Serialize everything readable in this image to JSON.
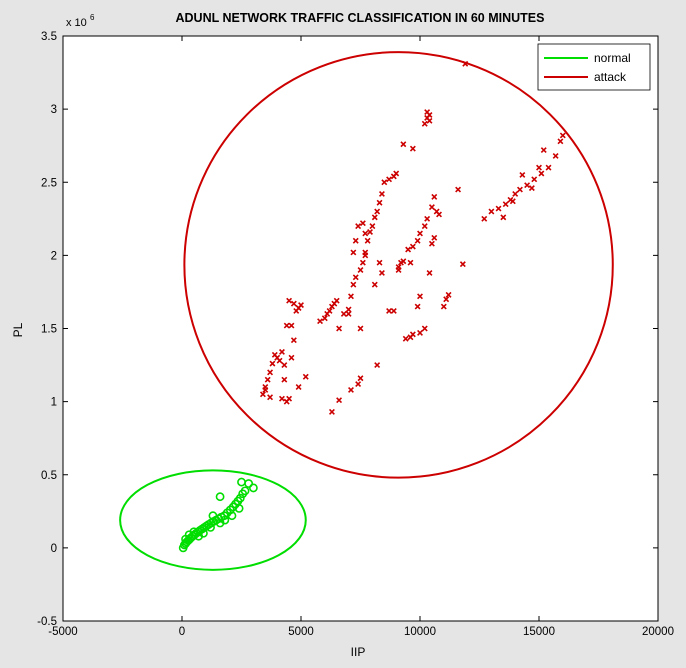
{
  "chart_data": {
    "type": "scatter",
    "title": "ADUNL NETWORK TRAFFIC CLASSIFICATION IN 60 MINUTES",
    "xlabel": "IIP",
    "ylabel": "PL",
    "y_exponent_label": "x 10",
    "y_exponent": "6",
    "xlim": [
      -5000,
      20000
    ],
    "ylim": [
      -0.5,
      3.5
    ],
    "x_ticks": [
      -5000,
      0,
      5000,
      10000,
      15000,
      20000
    ],
    "x_tick_labels": [
      "-5000",
      "0",
      "5000",
      "10000",
      "15000",
      "20000"
    ],
    "y_ticks": [
      -0.5,
      0,
      0.5,
      1,
      1.5,
      2,
      2.5,
      3,
      3.5
    ],
    "y_tick_labels": [
      "-0.5",
      "0",
      "0.5",
      "1",
      "1.5",
      "2",
      "2.5",
      "3",
      "3.5"
    ],
    "grid": false,
    "legend_position": "top-right",
    "series": [
      {
        "name": "normal",
        "color": "#00dd00",
        "marker": "circle",
        "boundary": {
          "cx": 1300,
          "cy": 0.19,
          "rx": 3900,
          "ry": 0.34
        },
        "points": [
          [
            50,
            0.0
          ],
          [
            100,
            0.02
          ],
          [
            150,
            0.03
          ],
          [
            200,
            0.04
          ],
          [
            260,
            0.05
          ],
          [
            320,
            0.06
          ],
          [
            380,
            0.07
          ],
          [
            450,
            0.08
          ],
          [
            520,
            0.09
          ],
          [
            600,
            0.1
          ],
          [
            680,
            0.11
          ],
          [
            760,
            0.12
          ],
          [
            850,
            0.13
          ],
          [
            940,
            0.14
          ],
          [
            1030,
            0.15
          ],
          [
            1120,
            0.16
          ],
          [
            1220,
            0.17
          ],
          [
            1320,
            0.18
          ],
          [
            1430,
            0.19
          ],
          [
            1540,
            0.2
          ],
          [
            1650,
            0.21
          ],
          [
            1780,
            0.22
          ],
          [
            1900,
            0.24
          ],
          [
            2030,
            0.26
          ],
          [
            2150,
            0.28
          ],
          [
            2250,
            0.3
          ],
          [
            2350,
            0.32
          ],
          [
            2450,
            0.34
          ],
          [
            2550,
            0.37
          ],
          [
            2650,
            0.39
          ],
          [
            500,
            0.11
          ],
          [
            300,
            0.09
          ],
          [
            900,
            0.1
          ],
          [
            1200,
            0.14
          ],
          [
            1600,
            0.17
          ],
          [
            2100,
            0.22
          ],
          [
            1300,
            0.22
          ],
          [
            1600,
            0.35
          ],
          [
            2500,
            0.45
          ],
          [
            3000,
            0.41
          ],
          [
            2800,
            0.44
          ],
          [
            2400,
            0.27
          ],
          [
            150,
            0.06
          ],
          [
            700,
            0.08
          ],
          [
            1800,
            0.19
          ]
        ]
      },
      {
        "name": "attack",
        "color": "#cc0000",
        "marker": "x",
        "boundary": {
          "cx": 9100,
          "cy": 1.935,
          "rx": 9000,
          "ry": 1.455
        },
        "points": [
          [
            3400,
            1.05
          ],
          [
            3500,
            1.1
          ],
          [
            3600,
            1.15
          ],
          [
            3700,
            1.2
          ],
          [
            3800,
            1.26
          ],
          [
            3900,
            1.32
          ],
          [
            4000,
            1.3
          ],
          [
            4100,
            1.28
          ],
          [
            4200,
            1.34
          ],
          [
            4300,
            1.25
          ],
          [
            3500,
            1.08
          ],
          [
            3700,
            1.03
          ],
          [
            4200,
            1.02
          ],
          [
            4400,
            1.0
          ],
          [
            4500,
            1.02
          ],
          [
            4300,
            1.15
          ],
          [
            4600,
            1.3
          ],
          [
            4900,
            1.1
          ],
          [
            5200,
            1.17
          ],
          [
            4700,
            1.42
          ],
          [
            4400,
            1.52
          ],
          [
            4500,
            1.69
          ],
          [
            4700,
            1.67
          ],
          [
            4900,
            1.64
          ],
          [
            5000,
            1.66
          ],
          [
            4800,
            1.62
          ],
          [
            4600,
            1.52
          ],
          [
            5800,
            1.55
          ],
          [
            6000,
            1.57
          ],
          [
            6100,
            1.6
          ],
          [
            6200,
            1.62
          ],
          [
            6300,
            1.65
          ],
          [
            6400,
            1.67
          ],
          [
            6500,
            1.69
          ],
          [
            6600,
            1.5
          ],
          [
            6800,
            1.6
          ],
          [
            7000,
            1.63
          ],
          [
            7100,
            1.72
          ],
          [
            7200,
            1.8
          ],
          [
            7300,
            1.85
          ],
          [
            7500,
            1.9
          ],
          [
            7600,
            1.95
          ],
          [
            7700,
            2.0
          ],
          [
            7800,
            2.1
          ],
          [
            7900,
            2.16
          ],
          [
            8000,
            2.2
          ],
          [
            8100,
            2.26
          ],
          [
            8200,
            2.3
          ],
          [
            8300,
            2.36
          ],
          [
            8400,
            2.42
          ],
          [
            8500,
            2.5
          ],
          [
            8700,
            2.52
          ],
          [
            8900,
            2.54
          ],
          [
            9000,
            2.56
          ],
          [
            9300,
            2.76
          ],
          [
            9700,
            2.73
          ],
          [
            10200,
            2.9
          ],
          [
            10300,
            2.94
          ],
          [
            10300,
            2.98
          ],
          [
            10400,
            2.96
          ],
          [
            10400,
            2.92
          ],
          [
            7200,
            2.02
          ],
          [
            7300,
            2.1
          ],
          [
            7400,
            2.2
          ],
          [
            7600,
            2.22
          ],
          [
            7700,
            2.15
          ],
          [
            7700,
            2.02
          ],
          [
            8100,
            1.8
          ],
          [
            8300,
            1.95
          ],
          [
            8400,
            1.88
          ],
          [
            8700,
            1.62
          ],
          [
            8900,
            1.62
          ],
          [
            9100,
            1.92
          ],
          [
            9200,
            1.95
          ],
          [
            9300,
            1.96
          ],
          [
            9500,
            2.04
          ],
          [
            9700,
            2.06
          ],
          [
            9900,
            2.1
          ],
          [
            10000,
            2.15
          ],
          [
            10200,
            2.2
          ],
          [
            10300,
            2.25
          ],
          [
            10500,
            2.33
          ],
          [
            10600,
            2.4
          ],
          [
            10700,
            2.3
          ],
          [
            10800,
            2.28
          ],
          [
            10600,
            2.12
          ],
          [
            10500,
            2.08
          ],
          [
            10400,
            1.88
          ],
          [
            10000,
            1.72
          ],
          [
            9900,
            1.65
          ],
          [
            10200,
            1.5
          ],
          [
            9400,
            1.43
          ],
          [
            9600,
            1.44
          ],
          [
            9700,
            1.46
          ],
          [
            10000,
            1.47
          ],
          [
            9100,
            1.9
          ],
          [
            9600,
            1.95
          ],
          [
            6300,
            0.93
          ],
          [
            6600,
            1.01
          ],
          [
            7100,
            1.08
          ],
          [
            7400,
            1.12
          ],
          [
            7500,
            1.16
          ],
          [
            8200,
            1.25
          ],
          [
            7000,
            1.6
          ],
          [
            7500,
            1.5
          ],
          [
            11000,
            1.65
          ],
          [
            11100,
            1.7
          ],
          [
            11200,
            1.73
          ],
          [
            11600,
            2.45
          ],
          [
            11800,
            1.94
          ],
          [
            11900,
            3.31
          ],
          [
            12700,
            2.25
          ],
          [
            13000,
            2.3
          ],
          [
            13300,
            2.32
          ],
          [
            13600,
            2.35
          ],
          [
            13800,
            2.38
          ],
          [
            14000,
            2.42
          ],
          [
            14200,
            2.45
          ],
          [
            14500,
            2.48
          ],
          [
            14800,
            2.52
          ],
          [
            15100,
            2.56
          ],
          [
            15400,
            2.6
          ],
          [
            15700,
            2.68
          ],
          [
            15900,
            2.78
          ],
          [
            16000,
            2.82
          ],
          [
            13900,
            2.37
          ],
          [
            14300,
            2.55
          ],
          [
            14700,
            2.46
          ],
          [
            15200,
            2.72
          ],
          [
            13500,
            2.26
          ],
          [
            15000,
            2.6
          ]
        ]
      }
    ]
  }
}
